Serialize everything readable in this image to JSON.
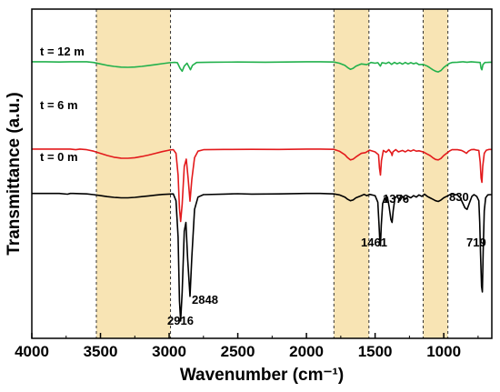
{
  "chart_data": {
    "type": "line",
    "title": "",
    "xlabel": "Wavenumber (cm⁻¹)",
    "ylabel": "Transmittance (a.u.)",
    "xlim": [
      4000,
      650
    ],
    "x_reversed": true,
    "x_ticks": [
      4000,
      3500,
      3000,
      2500,
      2000,
      1500,
      1000
    ],
    "y_ticks": "none",
    "grid": false,
    "legend": "none",
    "highlight_bands": [
      {
        "from": 3530,
        "to": 2990,
        "color": "#f8e4b4"
      },
      {
        "from": 1800,
        "to": 1545,
        "color": "#f8e4b4"
      },
      {
        "from": 1150,
        "to": 970,
        "color": "#f8e4b4"
      }
    ],
    "series": [
      {
        "name": "t = 12 m",
        "color": "#22b14c",
        "offset": 0.84,
        "points": [
          [
            4000,
            0.0
          ],
          [
            3900,
            0.0
          ],
          [
            3800,
            0.002
          ],
          [
            3720,
            0.0
          ],
          [
            3680,
            0.0
          ],
          [
            3600,
            0.0
          ],
          [
            3550,
            0.005
          ],
          [
            3500,
            0.015
          ],
          [
            3450,
            0.025
          ],
          [
            3400,
            0.032
          ],
          [
            3350,
            0.037
          ],
          [
            3300,
            0.038
          ],
          [
            3250,
            0.036
          ],
          [
            3200,
            0.032
          ],
          [
            3150,
            0.026
          ],
          [
            3100,
            0.02
          ],
          [
            3050,
            0.013
          ],
          [
            3000,
            0.007
          ],
          [
            2960,
            0.004
          ],
          [
            2940,
            0.006
          ],
          [
            2920,
            0.045
          ],
          [
            2905,
            0.065
          ],
          [
            2890,
            0.03
          ],
          [
            2870,
            0.01
          ],
          [
            2855,
            0.035
          ],
          [
            2845,
            0.055
          ],
          [
            2830,
            0.025
          ],
          [
            2800,
            0.005
          ],
          [
            2700,
            0.003
          ],
          [
            2500,
            0.002
          ],
          [
            2300,
            0.003
          ],
          [
            2000,
            0.0
          ],
          [
            1900,
            0.0
          ],
          [
            1800,
            0.002
          ],
          [
            1760,
            0.01
          ],
          [
            1720,
            0.025
          ],
          [
            1700,
            0.04
          ],
          [
            1680,
            0.052
          ],
          [
            1660,
            0.045
          ],
          [
            1640,
            0.03
          ],
          [
            1600,
            0.015
          ],
          [
            1560,
            0.02
          ],
          [
            1530,
            0.005
          ],
          [
            1500,
            0.01
          ],
          [
            1480,
            0.006
          ],
          [
            1462,
            0.03
          ],
          [
            1450,
            0.006
          ],
          [
            1420,
            0.012
          ],
          [
            1400,
            0.003
          ],
          [
            1380,
            0.018
          ],
          [
            1360,
            0.004
          ],
          [
            1340,
            0.014
          ],
          [
            1320,
            0.006
          ],
          [
            1300,
            0.016
          ],
          [
            1280,
            0.005
          ],
          [
            1260,
            0.015
          ],
          [
            1240,
            0.006
          ],
          [
            1220,
            0.014
          ],
          [
            1200,
            0.008
          ],
          [
            1180,
            0.02
          ],
          [
            1150,
            0.018
          ],
          [
            1120,
            0.03
          ],
          [
            1100,
            0.042
          ],
          [
            1080,
            0.055
          ],
          [
            1060,
            0.065
          ],
          [
            1040,
            0.07
          ],
          [
            1020,
            0.06
          ],
          [
            1000,
            0.04
          ],
          [
            980,
            0.025
          ],
          [
            960,
            0.012
          ],
          [
            940,
            0.005
          ],
          [
            900,
            0.003
          ],
          [
            860,
            0.0
          ],
          [
            830,
            0.003
          ],
          [
            800,
            0.0
          ],
          [
            760,
            0.003
          ],
          [
            735,
            0.005
          ],
          [
            728,
            0.045
          ],
          [
            722,
            0.055
          ],
          [
            715,
            0.02
          ],
          [
            700,
            0.005
          ],
          [
            680,
            0.004
          ],
          [
            660,
            0.003
          ],
          [
            650,
            0.003
          ]
        ]
      },
      {
        "name": "t = 6 m",
        "color": "#e31a1c",
        "offset": 0.575,
        "points": [
          [
            4000,
            0.0
          ],
          [
            3900,
            0.0
          ],
          [
            3800,
            0.0
          ],
          [
            3720,
            0.0
          ],
          [
            3680,
            0.005
          ],
          [
            3650,
            0.0
          ],
          [
            3600,
            0.005
          ],
          [
            3550,
            0.015
          ],
          [
            3500,
            0.03
          ],
          [
            3450,
            0.045
          ],
          [
            3400,
            0.057
          ],
          [
            3350,
            0.063
          ],
          [
            3300,
            0.064
          ],
          [
            3250,
            0.06
          ],
          [
            3200,
            0.052
          ],
          [
            3150,
            0.042
          ],
          [
            3100,
            0.03
          ],
          [
            3050,
            0.018
          ],
          [
            3000,
            0.008
          ],
          [
            2970,
            0.004
          ],
          [
            2950,
            0.03
          ],
          [
            2935,
            0.18
          ],
          [
            2925,
            0.41
          ],
          [
            2916,
            0.5
          ],
          [
            2905,
            0.38
          ],
          [
            2890,
            0.12
          ],
          [
            2875,
            0.07
          ],
          [
            2862,
            0.2
          ],
          [
            2848,
            0.36
          ],
          [
            2835,
            0.21
          ],
          [
            2815,
            0.06
          ],
          [
            2790,
            0.015
          ],
          [
            2750,
            0.005
          ],
          [
            2600,
            0.003
          ],
          [
            2400,
            0.002
          ],
          [
            2200,
            0.003
          ],
          [
            2000,
            0.0
          ],
          [
            1900,
            0.0
          ],
          [
            1800,
            0.002
          ],
          [
            1760,
            0.015
          ],
          [
            1720,
            0.04
          ],
          [
            1700,
            0.06
          ],
          [
            1680,
            0.075
          ],
          [
            1660,
            0.07
          ],
          [
            1640,
            0.055
          ],
          [
            1600,
            0.03
          ],
          [
            1570,
            0.025
          ],
          [
            1540,
            0.008
          ],
          [
            1500,
            0.02
          ],
          [
            1475,
            0.04
          ],
          [
            1468,
            0.13
          ],
          [
            1461,
            0.18
          ],
          [
            1454,
            0.08
          ],
          [
            1440,
            0.01
          ],
          [
            1420,
            0.022
          ],
          [
            1400,
            0.004
          ],
          [
            1380,
            0.03
          ],
          [
            1376,
            0.045
          ],
          [
            1370,
            0.02
          ],
          [
            1350,
            0.004
          ],
          [
            1330,
            0.02
          ],
          [
            1300,
            0.01
          ],
          [
            1280,
            0.02
          ],
          [
            1260,
            0.008
          ],
          [
            1240,
            0.015
          ],
          [
            1220,
            0.006
          ],
          [
            1200,
            0.015
          ],
          [
            1180,
            0.012
          ],
          [
            1150,
            0.02
          ],
          [
            1120,
            0.035
          ],
          [
            1100,
            0.045
          ],
          [
            1080,
            0.06
          ],
          [
            1060,
            0.072
          ],
          [
            1040,
            0.075
          ],
          [
            1020,
            0.065
          ],
          [
            1000,
            0.045
          ],
          [
            980,
            0.03
          ],
          [
            960,
            0.015
          ],
          [
            940,
            0.005
          ],
          [
            900,
            0.005
          ],
          [
            870,
            0.01
          ],
          [
            850,
            0.02
          ],
          [
            835,
            0.03
          ],
          [
            820,
            0.015
          ],
          [
            800,
            0.005
          ],
          [
            780,
            0.003
          ],
          [
            760,
            0.008
          ],
          [
            745,
            0.01
          ],
          [
            735,
            0.09
          ],
          [
            728,
            0.2
          ],
          [
            722,
            0.23
          ],
          [
            716,
            0.12
          ],
          [
            705,
            0.03
          ],
          [
            690,
            0.008
          ],
          [
            670,
            0.003
          ],
          [
            650,
            0.003
          ]
        ]
      },
      {
        "name": "t = 0 m",
        "color": "#000000",
        "offset": 0.44,
        "points": [
          [
            4000,
            0.0
          ],
          [
            3900,
            0.0
          ],
          [
            3800,
            0.0
          ],
          [
            3740,
            0.005
          ],
          [
            3720,
            0.0
          ],
          [
            3700,
            0.0
          ],
          [
            3600,
            0.003
          ],
          [
            3550,
            0.008
          ],
          [
            3500,
            0.015
          ],
          [
            3450,
            0.022
          ],
          [
            3400,
            0.027
          ],
          [
            3350,
            0.03
          ],
          [
            3300,
            0.03
          ],
          [
            3250,
            0.027
          ],
          [
            3200,
            0.022
          ],
          [
            3150,
            0.017
          ],
          [
            3100,
            0.012
          ],
          [
            3050,
            0.007
          ],
          [
            3000,
            0.004
          ],
          [
            2970,
            0.003
          ],
          [
            2950,
            0.05
          ],
          [
            2935,
            0.3
          ],
          [
            2925,
            0.74
          ],
          [
            2916,
            0.88
          ],
          [
            2905,
            0.68
          ],
          [
            2890,
            0.26
          ],
          [
            2878,
            0.2
          ],
          [
            2865,
            0.45
          ],
          [
            2848,
            0.71
          ],
          [
            2835,
            0.44
          ],
          [
            2815,
            0.11
          ],
          [
            2790,
            0.025
          ],
          [
            2750,
            0.008
          ],
          [
            2600,
            0.004
          ],
          [
            2500,
            0.002
          ],
          [
            2400,
            0.004
          ],
          [
            2200,
            0.003
          ],
          [
            2000,
            0.0
          ],
          [
            1900,
            0.0
          ],
          [
            1800,
            0.003
          ],
          [
            1760,
            0.01
          ],
          [
            1720,
            0.025
          ],
          [
            1700,
            0.04
          ],
          [
            1680,
            0.05
          ],
          [
            1660,
            0.045
          ],
          [
            1640,
            0.03
          ],
          [
            1600,
            0.015
          ],
          [
            1580,
            0.006
          ],
          [
            1560,
            0.015
          ],
          [
            1540,
            0.006
          ],
          [
            1500,
            0.015
          ],
          [
            1480,
            0.06
          ],
          [
            1472,
            0.2
          ],
          [
            1465,
            0.34
          ],
          [
            1461,
            0.36
          ],
          [
            1455,
            0.22
          ],
          [
            1445,
            0.07
          ],
          [
            1430,
            0.03
          ],
          [
            1420,
            0.06
          ],
          [
            1410,
            0.025
          ],
          [
            1398,
            0.09
          ],
          [
            1385,
            0.18
          ],
          [
            1376,
            0.2
          ],
          [
            1368,
            0.12
          ],
          [
            1355,
            0.03
          ],
          [
            1340,
            0.02
          ],
          [
            1320,
            0.05
          ],
          [
            1300,
            0.02
          ],
          [
            1280,
            0.04
          ],
          [
            1260,
            0.02
          ],
          [
            1240,
            0.03
          ],
          [
            1220,
            0.015
          ],
          [
            1200,
            0.025
          ],
          [
            1180,
            0.01
          ],
          [
            1160,
            0.02
          ],
          [
            1140,
            0.005
          ],
          [
            1120,
            0.02
          ],
          [
            1100,
            0.03
          ],
          [
            1080,
            0.04
          ],
          [
            1060,
            0.05
          ],
          [
            1040,
            0.055
          ],
          [
            1020,
            0.045
          ],
          [
            1000,
            0.03
          ],
          [
            980,
            0.02
          ],
          [
            960,
            0.01
          ],
          [
            940,
            0.005
          ],
          [
            900,
            0.01
          ],
          [
            880,
            0.03
          ],
          [
            860,
            0.07
          ],
          [
            845,
            0.1
          ],
          [
            830,
            0.11
          ],
          [
            815,
            0.07
          ],
          [
            795,
            0.02
          ],
          [
            780,
            0.008
          ],
          [
            760,
            0.02
          ],
          [
            745,
            0.05
          ],
          [
            738,
            0.2
          ],
          [
            732,
            0.42
          ],
          [
            725,
            0.64
          ],
          [
            719,
            0.68
          ],
          [
            713,
            0.4
          ],
          [
            705,
            0.12
          ],
          [
            695,
            0.03
          ],
          [
            680,
            0.01
          ],
          [
            665,
            0.008
          ],
          [
            650,
            0.008
          ]
        ]
      }
    ],
    "annotations": [
      {
        "text": "2916",
        "x": 2916
      },
      {
        "text": "2848",
        "x": 2848
      },
      {
        "text": "1461",
        "x": 1461
      },
      {
        "text": "1376",
        "x": 1376
      },
      {
        "text": "830",
        "x": 830
      },
      {
        "text": "719",
        "x": 719
      }
    ]
  }
}
